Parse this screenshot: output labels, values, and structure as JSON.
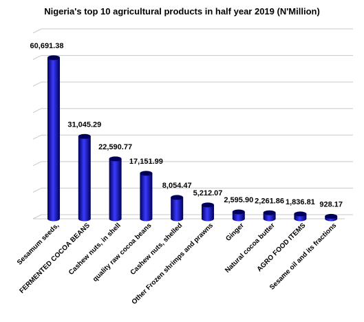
{
  "chart_data": {
    "type": "bar",
    "title": "Nigeria's top 10 agricultural products in half year 2019 (N'Million)",
    "categories": [
      "Sesamum seeds,",
      "FERMENTED COCOA BEANS",
      "Cashew nuts, in shell",
      "quality raw cocoa beans",
      "Cashew nuts, shelled",
      "Other Frozen shrimps and prawns",
      "Ginger",
      "Natural cocoa butter",
      "AGRO FOOD ITEMS",
      "Sesame oil and its fractions"
    ],
    "values": [
      60691.38,
      31045.29,
      22590.77,
      17151.99,
      8054.47,
      5212.07,
      2595.9,
      2261.86,
      1836.81,
      928.17
    ],
    "value_labels": [
      "60,691.38",
      "31,045.29",
      "22,590.77",
      "17,151.99",
      "8,054.47",
      "5,212.07",
      "2,595.90",
      "2,261.86",
      "1,836.81",
      "928.17"
    ],
    "ylim": [
      0,
      70000
    ],
    "gridlines": true,
    "bar_color": "#0000b0",
    "bar_color_dark": "#00005a",
    "bar_color_light": "#3a3aff",
    "grid_color": "#c8c8c8"
  }
}
